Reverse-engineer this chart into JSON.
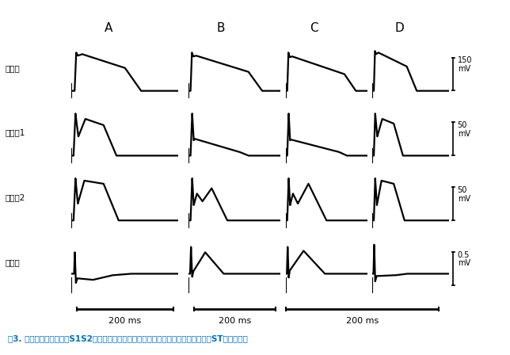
{
  "caption": "图3. 给予胍那地尔灌注、S1S2刺激、缩短基础周长刺激对内外膜复极平台期及心电图ST段的影响。",
  "row_labels": [
    "心内膜",
    "心外膜1",
    "心外膜2",
    "心电图"
  ],
  "col_labels": [
    "A",
    "B",
    "C",
    "D"
  ],
  "scale_labels_right": [
    "150\nmV",
    "50\nmV",
    "50\nmV",
    "0.5\nmV"
  ],
  "bg_color": "#ffffff",
  "text_color": "#000000",
  "caption_color": "#0070c0",
  "lw": 1.6
}
